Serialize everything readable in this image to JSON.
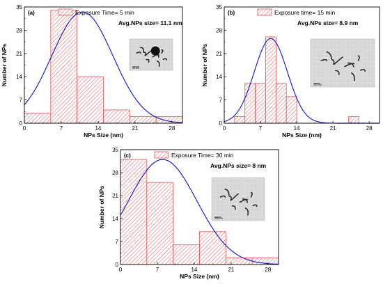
{
  "chart_data": [
    {
      "type": "bar",
      "panel_label": "(a)",
      "legend": "Exposure Time= 5 min",
      "annotation": "Avg.NPs size= 11.1 nm",
      "xlabel": "NPs Size (nm)",
      "ylabel": "Number of NPs",
      "xlim": [
        0,
        30
      ],
      "ylim": [
        0,
        35
      ],
      "xticks": [
        0,
        7,
        14,
        21,
        28
      ],
      "yticks": [
        0,
        7,
        14,
        21,
        28,
        35
      ],
      "bins": [
        {
          "x0": 0,
          "x1": 5,
          "value": 3
        },
        {
          "x0": 5,
          "x1": 10,
          "value": 34
        },
        {
          "x0": 10,
          "x1": 15,
          "value": 14
        },
        {
          "x0": 15,
          "x1": 20,
          "value": 4
        },
        {
          "x0": 20,
          "x1": 25,
          "value": 2
        },
        {
          "x0": 25,
          "x1": 30,
          "value": 2
        }
      ],
      "fit": {
        "peak": 11,
        "sigma": 5.8,
        "amplitude": 33.5
      },
      "inset_scale": "50 nm"
    },
    {
      "type": "bar",
      "panel_label": "(b)",
      "legend": "Exposure time= 15 min",
      "annotation": "Avg.NPs size= 8.9 nm",
      "xlabel": "NPs Size (nm)",
      "ylabel": "Number of NPs",
      "xlim": [
        0,
        30
      ],
      "ylim": [
        0,
        35
      ],
      "xticks": [
        0,
        7,
        14,
        21,
        28
      ],
      "yticks": [
        0,
        7,
        14,
        21,
        28,
        35
      ],
      "bins": [
        {
          "x0": 2,
          "x1": 4,
          "value": 2
        },
        {
          "x0": 4,
          "x1": 6,
          "value": 12
        },
        {
          "x0": 6,
          "x1": 8,
          "value": 12
        },
        {
          "x0": 8,
          "x1": 10,
          "value": 26
        },
        {
          "x0": 10,
          "x1": 12,
          "value": 12
        },
        {
          "x0": 12,
          "x1": 14,
          "value": 8
        },
        {
          "x0": 24,
          "x1": 26,
          "value": 2
        }
      ],
      "fit": {
        "peak": 9,
        "sigma": 3.2,
        "amplitude": 25.5
      },
      "inset_scale": "100 nm"
    },
    {
      "type": "bar",
      "panel_label": "(c)",
      "legend": "Exposure Time= 30 min",
      "annotation": "Avg.NPs size= 8 nm",
      "xlabel": "NPs Size (nm)",
      "ylabel": "Number of NPs",
      "xlim": [
        0,
        30
      ],
      "ylim": [
        0,
        35
      ],
      "xticks": [
        0,
        7,
        14,
        21,
        28
      ],
      "yticks": [
        0,
        7,
        14,
        21,
        28,
        35
      ],
      "bins": [
        {
          "x0": 0,
          "x1": 5,
          "value": 32
        },
        {
          "x0": 5,
          "x1": 10,
          "value": 25
        },
        {
          "x0": 10,
          "x1": 15,
          "value": 6
        },
        {
          "x0": 15,
          "x1": 20,
          "value": 10
        },
        {
          "x0": 20,
          "x1": 25,
          "value": 2
        },
        {
          "x0": 25,
          "x1": 30,
          "value": 2
        }
      ],
      "fit": {
        "peak": 8,
        "sigma": 6.5,
        "amplitude": 32
      },
      "inset_scale": "100 nm"
    }
  ],
  "colors": {
    "bar_edge": "#e05555",
    "hatch": "#e05555",
    "fit_line": "#1f1fd0",
    "axis": "#000000"
  }
}
